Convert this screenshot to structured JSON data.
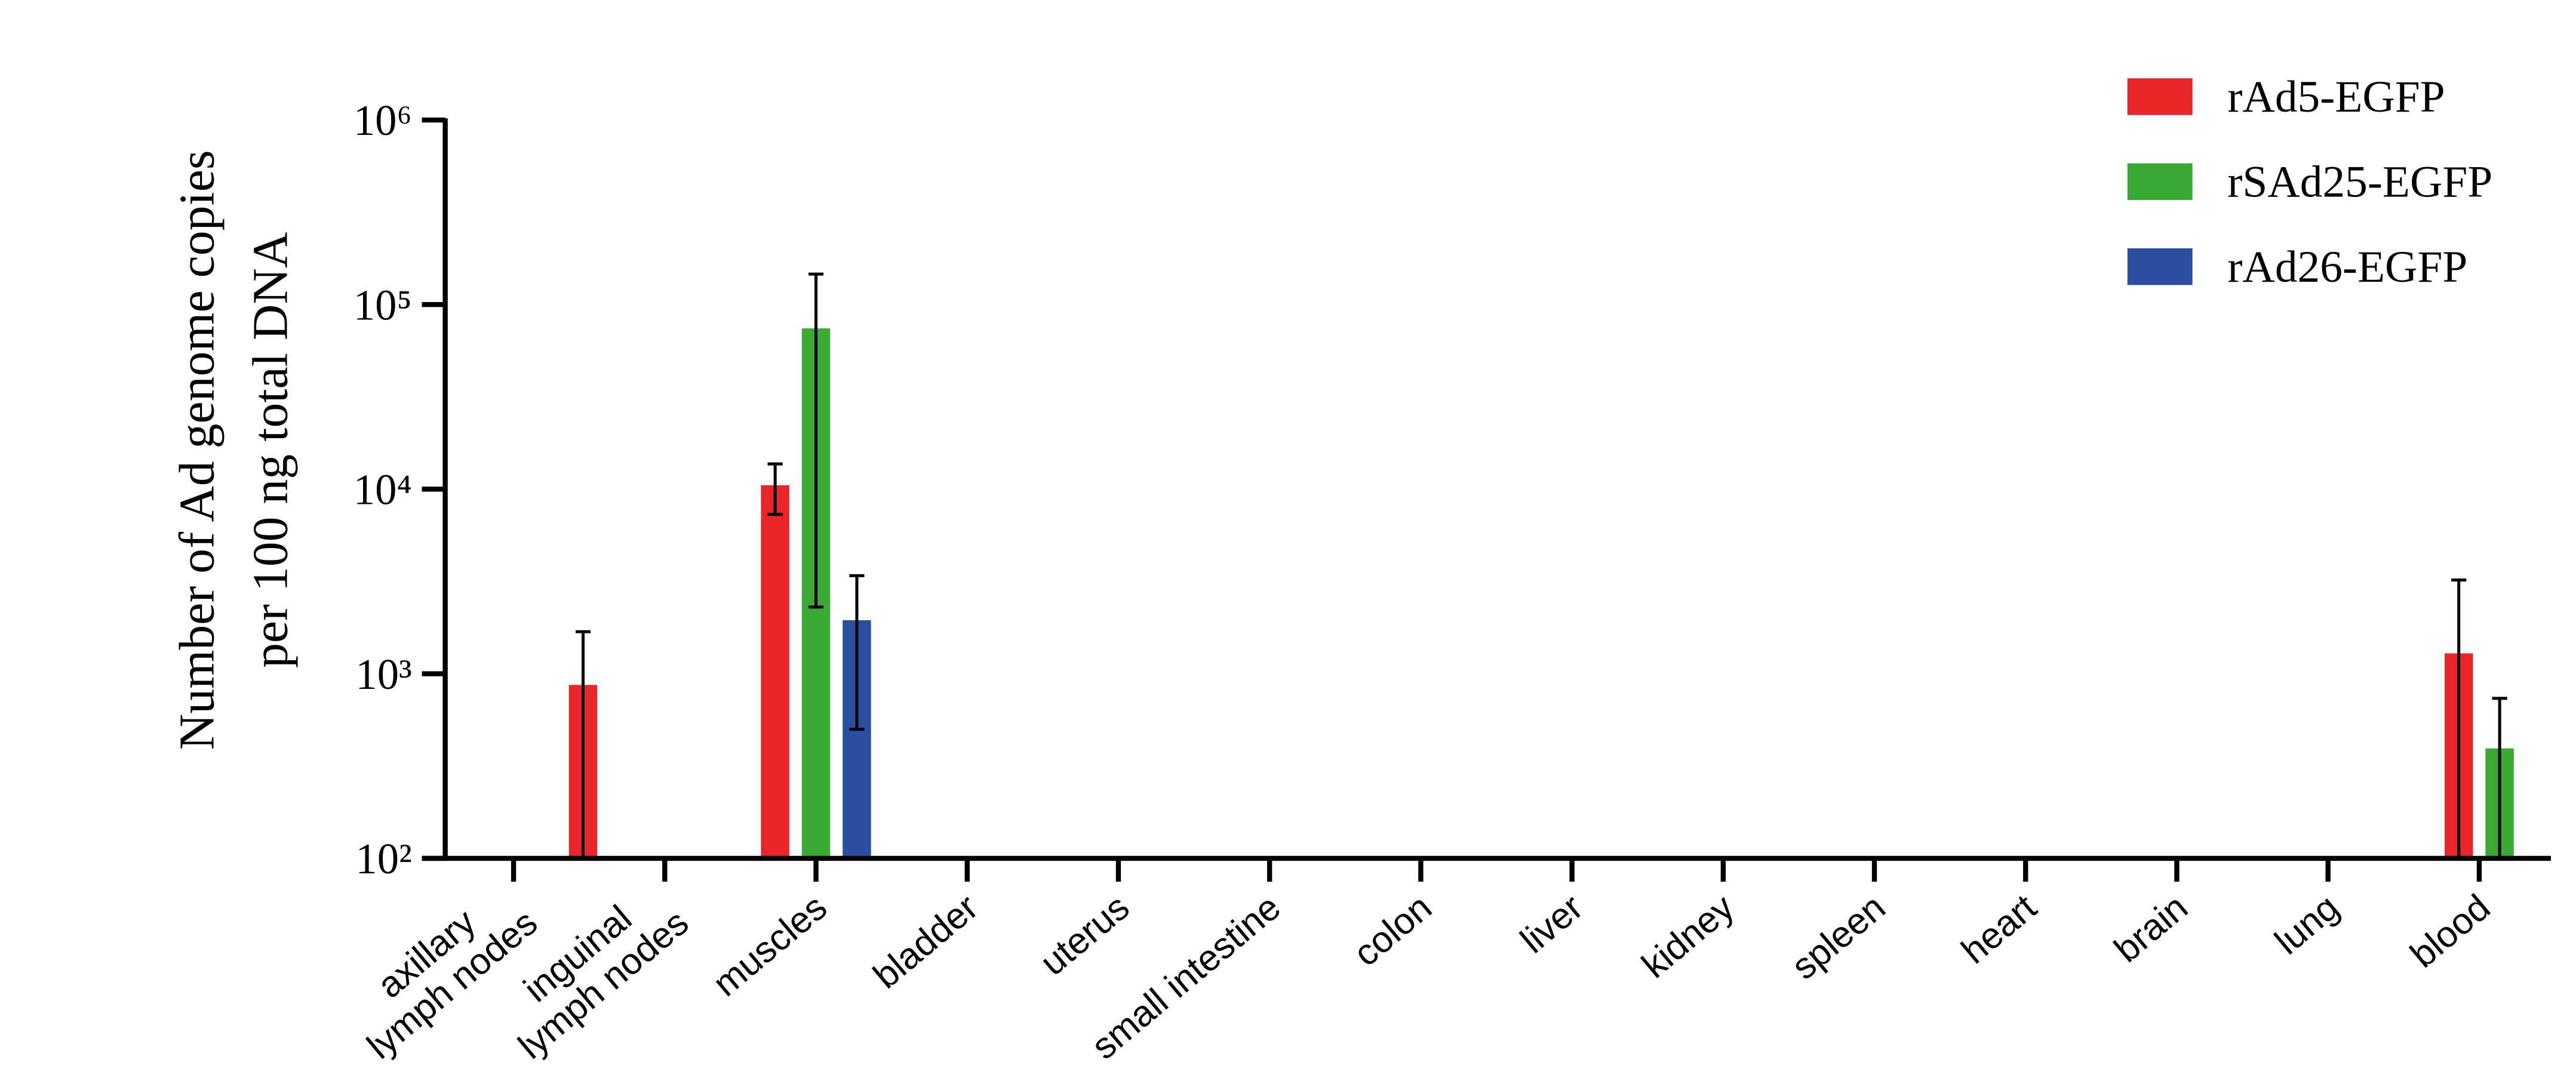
{
  "chart_data": {
    "type": "bar",
    "ylabel": [
      "Number of Ad genome copies",
      "per 100 ng total DNA"
    ],
    "categories": [
      "axillary\nlymph nodes",
      "inguinal\nlymph nodes",
      "muscles",
      "bladder",
      "uterus",
      "small intestine",
      "colon",
      "liver",
      "kidney",
      "spleen",
      "heart",
      "brain",
      "lung",
      "blood"
    ],
    "series": [
      {
        "name": "rAd5-EGFP",
        "color": "#e8262a",
        "values": [
          null,
          870,
          10500,
          null,
          null,
          null,
          null,
          null,
          null,
          null,
          null,
          null,
          null,
          1290
        ],
        "errors": [
          null,
          820,
          3200,
          null,
          null,
          null,
          null,
          null,
          null,
          null,
          null,
          null,
          null,
          1930
        ]
      },
      {
        "name": "rSAd25-EGFP",
        "color": "#3aaa35",
        "values": [
          null,
          null,
          74300,
          null,
          null,
          null,
          null,
          null,
          null,
          null,
          null,
          null,
          null,
          394
        ],
        "errors": [
          null,
          null,
          72000,
          null,
          null,
          null,
          null,
          null,
          null,
          null,
          null,
          null,
          null,
          342
        ]
      },
      {
        "name": "rAd26-EGFP",
        "color": "#2a4fa0",
        "values": [
          null,
          null,
          1950,
          null,
          null,
          null,
          null,
          null,
          null,
          null,
          null,
          null,
          null,
          null
        ],
        "errors": [
          null,
          null,
          1450,
          null,
          null,
          null,
          null,
          null,
          null,
          null,
          null,
          null,
          null,
          null
        ]
      }
    ],
    "log_scale": true,
    "ylim": [
      100,
      1000000
    ],
    "yticks": [
      {
        "value": 100,
        "label": "10²"
      },
      {
        "value": 1000,
        "label": "10³"
      },
      {
        "value": 10000,
        "label": "10⁴"
      },
      {
        "value": 100000,
        "label": "10⁵"
      },
      {
        "value": 1000000,
        "label": "10⁶"
      }
    ],
    "legend": "top-right"
  }
}
